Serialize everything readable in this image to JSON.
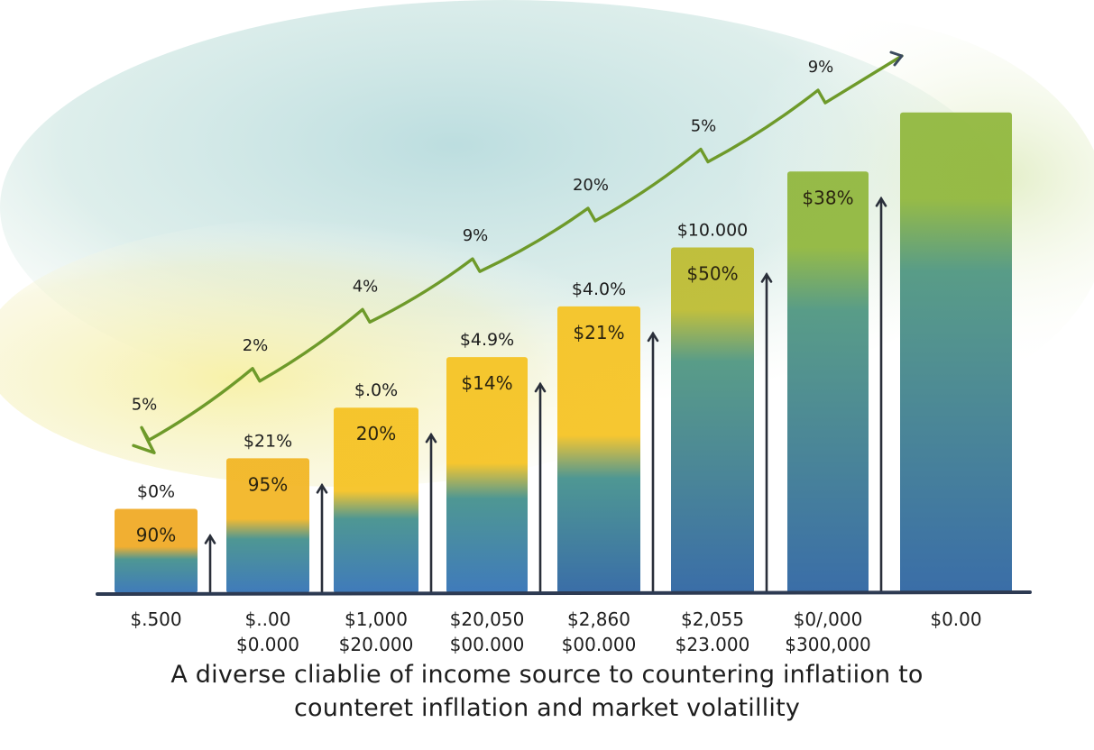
{
  "chart_data": {
    "type": "bar",
    "categories": [
      [
        "$.500",
        ""
      ],
      [
        "$..00",
        "$0.000"
      ],
      [
        "$1,000",
        "$20.000"
      ],
      [
        "$20,050",
        "$00.000"
      ],
      [
        "$2,860",
        "$00.000"
      ],
      [
        "$2,055",
        "$23.000"
      ],
      [
        "$0/,000",
        "$300,000"
      ],
      [
        "$0.00",
        ""
      ]
    ],
    "bars": [
      {
        "value": 1.0,
        "top_label": "$0%",
        "inner_label": "90%"
      },
      {
        "value": 1.6,
        "top_label": "$21%",
        "inner_label": "95%"
      },
      {
        "value": 2.2,
        "top_label": "$.0%",
        "inner_label": "20%"
      },
      {
        "value": 2.8,
        "top_label": "$4.9%",
        "inner_label": "$14%"
      },
      {
        "value": 3.4,
        "top_label": "$4.0%",
        "inner_label": "$21%"
      },
      {
        "value": 4.1,
        "top_label": "$10.000",
        "inner_label": "$50%"
      },
      {
        "value": 5.0,
        "top_label": "",
        "inner_label": "$38%"
      },
      {
        "value": 5.7,
        "top_label": "",
        "inner_label": ""
      }
    ],
    "trend_line": {
      "labels": [
        "5%",
        "2%",
        "4%",
        "9%",
        "20%",
        "5%",
        "9%"
      ],
      "values": [
        1.9,
        2.6,
        3.3,
        3.9,
        4.5,
        5.2,
        5.9
      ]
    },
    "ylim": [
      0,
      6.2
    ],
    "title": "",
    "xlabel": "",
    "ylabel": "",
    "grid": false,
    "legend": "none"
  },
  "caption": {
    "line1": "A diverse cliablie of income source to countering inflatiion to",
    "line2": "counteret infllation and market volatillity"
  },
  "colors": {
    "yellow": "#f5c21f",
    "orange": "#f0a820",
    "green": "#8fb63a",
    "teal": "#3f8e8a",
    "blue": "#2f6fb5",
    "navy": "#1c3f6e",
    "trend": "#6e9a2a",
    "ink": "#1d1d1d"
  }
}
